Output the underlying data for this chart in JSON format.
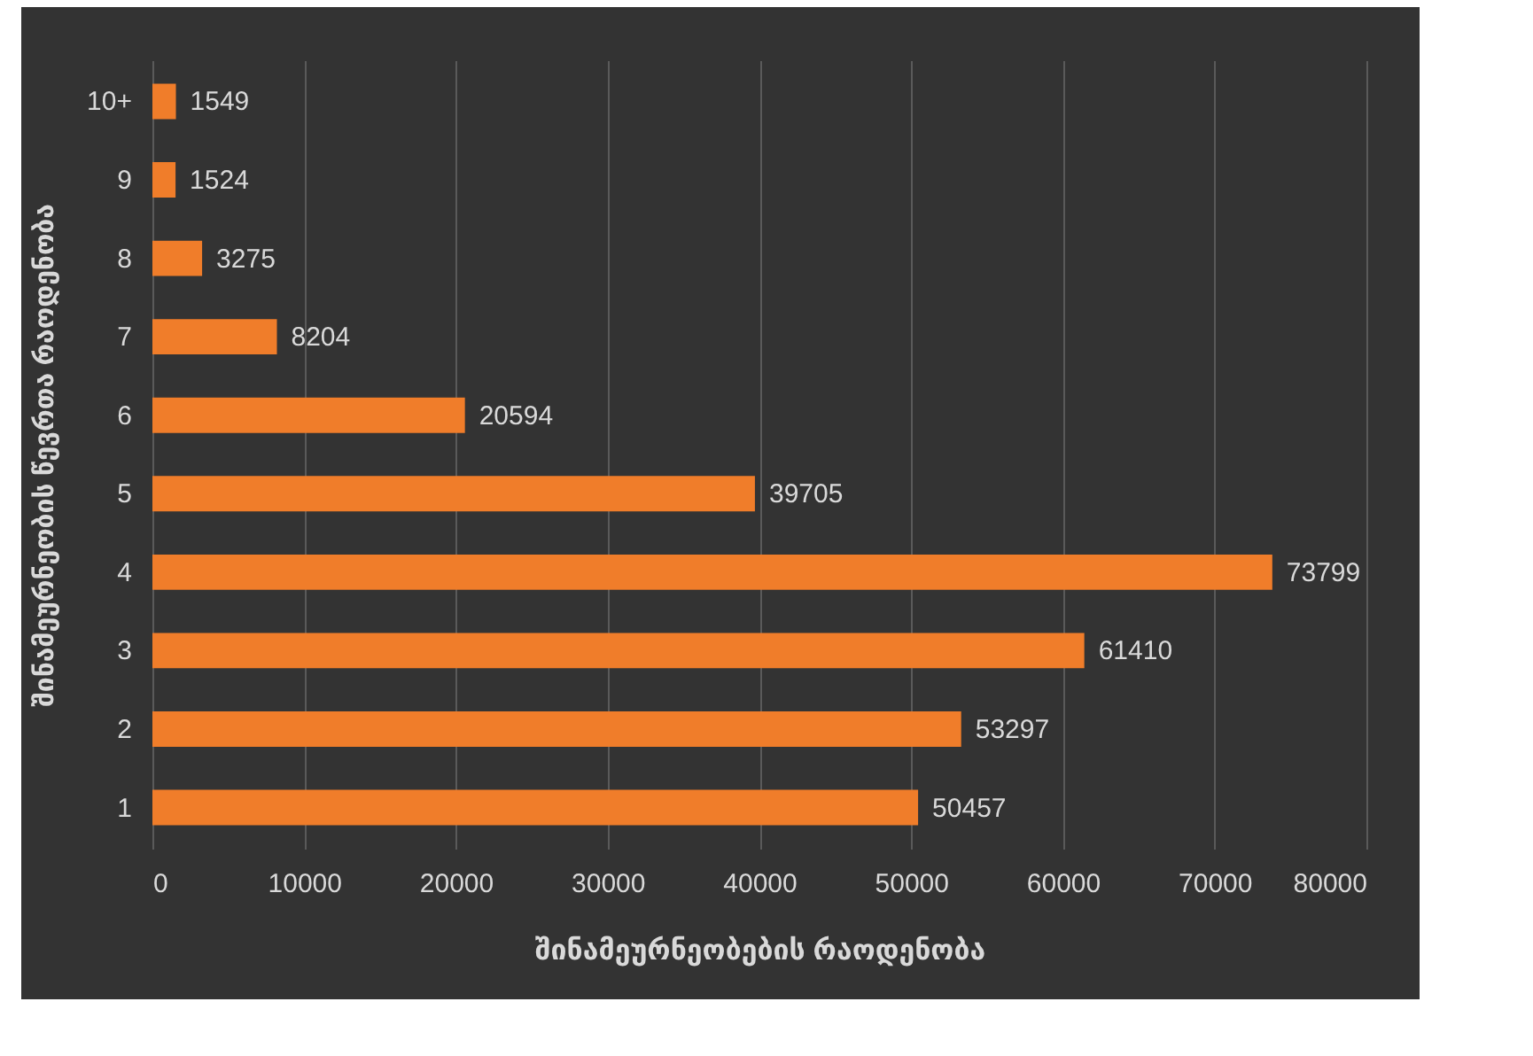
{
  "chart_data": {
    "type": "bar",
    "orientation": "horizontal",
    "xlabel": "შინამეურნეობების რაოდენობა",
    "ylabel": "შინამეურნეობის წევრთა რაოდენობა",
    "categories": [
      "10+",
      "9",
      "8",
      "7",
      "6",
      "5",
      "4",
      "3",
      "2",
      "1"
    ],
    "values": [
      1549,
      1524,
      3275,
      8204,
      20594,
      39705,
      73799,
      61410,
      53297,
      50457
    ],
    "color": "#f07d2a",
    "data_labels": true,
    "xlim": [
      0,
      80000
    ],
    "xticks": [
      0,
      10000,
      20000,
      30000,
      40000,
      50000,
      60000,
      70000,
      80000
    ],
    "grid": "x"
  }
}
